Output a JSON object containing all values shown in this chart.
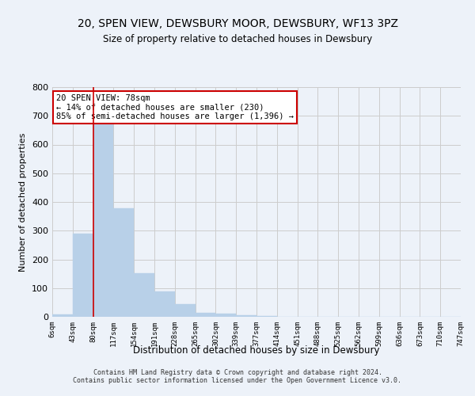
{
  "title": "20, SPEN VIEW, DEWSBURY MOOR, DEWSBURY, WF13 3PZ",
  "subtitle": "Size of property relative to detached houses in Dewsbury",
  "xlabel": "Distribution of detached houses by size in Dewsbury",
  "ylabel": "Number of detached properties",
  "bar_values": [
    8,
    290,
    670,
    378,
    152,
    88,
    44,
    13,
    11,
    6,
    4,
    0,
    0,
    0,
    0,
    0,
    0,
    0,
    0,
    0
  ],
  "bar_labels": [
    "6sqm",
    "43sqm",
    "80sqm",
    "117sqm",
    "154sqm",
    "191sqm",
    "228sqm",
    "265sqm",
    "302sqm",
    "339sqm",
    "377sqm",
    "414sqm",
    "451sqm",
    "488sqm",
    "525sqm",
    "562sqm",
    "599sqm",
    "636sqm",
    "673sqm",
    "710sqm",
    "747sqm"
  ],
  "bar_color": "#b8d0e8",
  "bar_edge_color": "#b8d0e8",
  "grid_color": "#cccccc",
  "background_color": "#edf2f9",
  "marker_line_color": "#cc0000",
  "annotation_text": "20 SPEN VIEW: 78sqm\n← 14% of detached houses are smaller (230)\n85% of semi-detached houses are larger (1,396) →",
  "annotation_box_color": "#ffffff",
  "annotation_box_edge": "#cc0000",
  "ylim": [
    0,
    800
  ],
  "yticks": [
    0,
    100,
    200,
    300,
    400,
    500,
    600,
    700,
    800
  ],
  "footer_line1": "Contains HM Land Registry data © Crown copyright and database right 2024.",
  "footer_line2": "Contains public sector information licensed under the Open Government Licence v3.0."
}
